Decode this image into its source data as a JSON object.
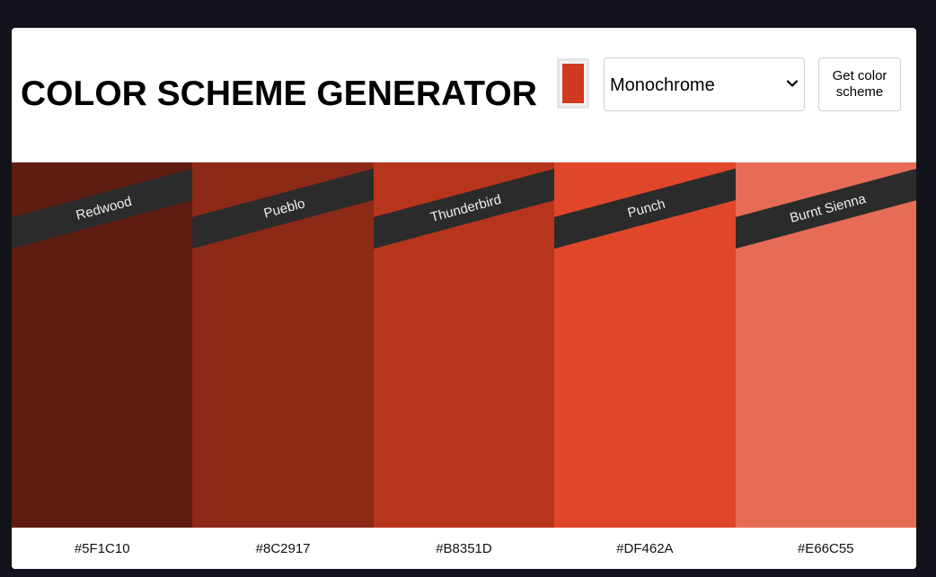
{
  "header": {
    "title": "COLOR SCHEME GENERATOR",
    "seed_color": "#D0381F",
    "mode_select": {
      "selected": "Monochrome"
    },
    "get_button_label": "Get color scheme"
  },
  "palette": {
    "colors": [
      {
        "name": "Redwood",
        "hex": "#5F1C10"
      },
      {
        "name": "Pueblo",
        "hex": "#8C2917"
      },
      {
        "name": "Thunderbird",
        "hex": "#B8351D"
      },
      {
        "name": "Punch",
        "hex": "#DF462A"
      },
      {
        "name": "Burnt Sienna",
        "hex": "#E66C55"
      }
    ]
  },
  "icons": {
    "select_chevron": "chevron-down-icon"
  },
  "theme": {
    "page_background": "#12131A",
    "card_background": "#FFFFFF",
    "label_band": "#2B2B2B"
  }
}
